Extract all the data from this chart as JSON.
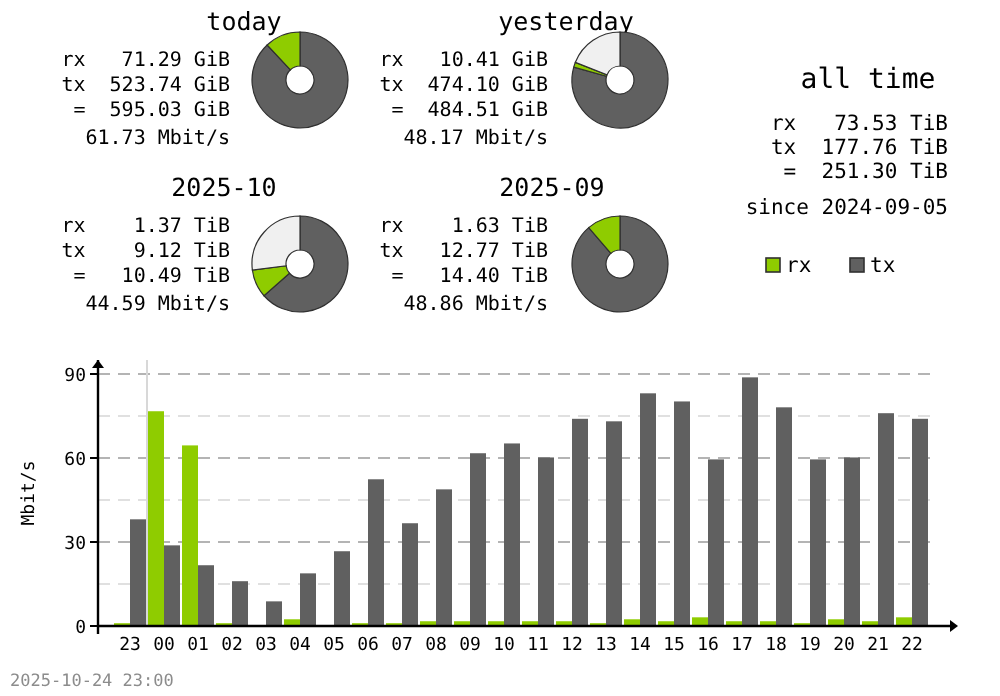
{
  "chart_data": [
    {
      "type": "donut",
      "title": "today",
      "categories": [
        null,
        null
      ],
      "values": [
        88,
        12
      ],
      "colors": [
        "#606060",
        "#8fcc00"
      ],
      "annotations": [
        "rx   71.29 GiB",
        "tx  523.74 GiB",
        " =  595.03 GiB",
        "61.73 Mbit/s"
      ]
    },
    {
      "type": "donut",
      "title": "yesterday",
      "categories": [
        null,
        null,
        null
      ],
      "values": [
        79.3,
        1.7,
        19
      ],
      "colors": [
        "#606060",
        "#8fcc00",
        "#f0f0f0"
      ],
      "annotations": [
        "rx   10.41 GiB",
        "tx  474.10 GiB",
        " =  484.51 GiB",
        "48.17 Mbit/s"
      ]
    },
    {
      "type": "other",
      "title": "all time",
      "annotations": [
        "rx   73.53 TiB",
        "tx  177.76 TiB",
        " =  251.30 TiB",
        "since 2024-09-05"
      ]
    },
    {
      "type": "donut",
      "title": "2025-10",
      "categories": [
        null,
        null,
        null
      ],
      "values": [
        63.5,
        9.5,
        27
      ],
      "colors": [
        "#606060",
        "#8fcc00",
        "#f0f0f0"
      ],
      "annotations": [
        "rx    1.37 TiB",
        "tx    9.12 TiB",
        " =   10.49 TiB",
        "44.59 Mbit/s"
      ]
    },
    {
      "type": "donut",
      "title": "2025-09",
      "categories": [
        null,
        null
      ],
      "values": [
        88.7,
        11.3
      ],
      "colors": [
        "#606060",
        "#8fcc00"
      ],
      "annotations": [
        "rx    1.63 TiB",
        "tx   12.77 TiB",
        " =   14.40 TiB",
        "48.86 Mbit/s"
      ]
    },
    {
      "type": "bar",
      "ylabel": "Mbit/s",
      "categories": [
        "23",
        "00",
        "01",
        "02",
        "03",
        "04",
        "05",
        "06",
        "07",
        "08",
        "09",
        "10",
        "11",
        "12",
        "13",
        "14",
        "15",
        "16",
        "17",
        "18",
        "19",
        "20",
        "21",
        "22"
      ],
      "series": [
        {
          "name": "rx",
          "color": "#8fcc00",
          "values": [
            1,
            76.7,
            64.5,
            1,
            0,
            2.4,
            0,
            1,
            1,
            1.7,
            1.7,
            1.7,
            1.7,
            1.7,
            1,
            2.4,
            1.7,
            3.1,
            1.7,
            1.7,
            1,
            2.4,
            1.7,
            3.1
          ]
        },
        {
          "name": "tx",
          "color": "#606060",
          "values": [
            38.1,
            28.8,
            21.7,
            16,
            8.8,
            18.8,
            26.7,
            52.4,
            36.7,
            48.8,
            61.7,
            65.2,
            60.2,
            74,
            73.1,
            83.1,
            80.2,
            59.5,
            88.8,
            78.1,
            59.5,
            60.2,
            76,
            74
          ]
        }
      ],
      "ylim": [
        0,
        95
      ],
      "yticks": [
        0,
        {
          "value": 15,
          "label": null
        },
        30,
        {
          "value": 45,
          "label": null
        },
        60,
        {
          "value": 75,
          "label": null
        },
        90
      ],
      "grid": "y",
      "legend": "top right",
      "ref_lines": [
        {
          "axis": "x",
          "value": "00",
          "color": "#d8d8d8"
        }
      ],
      "annotations": [
        "2025-10-24 23:00"
      ]
    }
  ]
}
